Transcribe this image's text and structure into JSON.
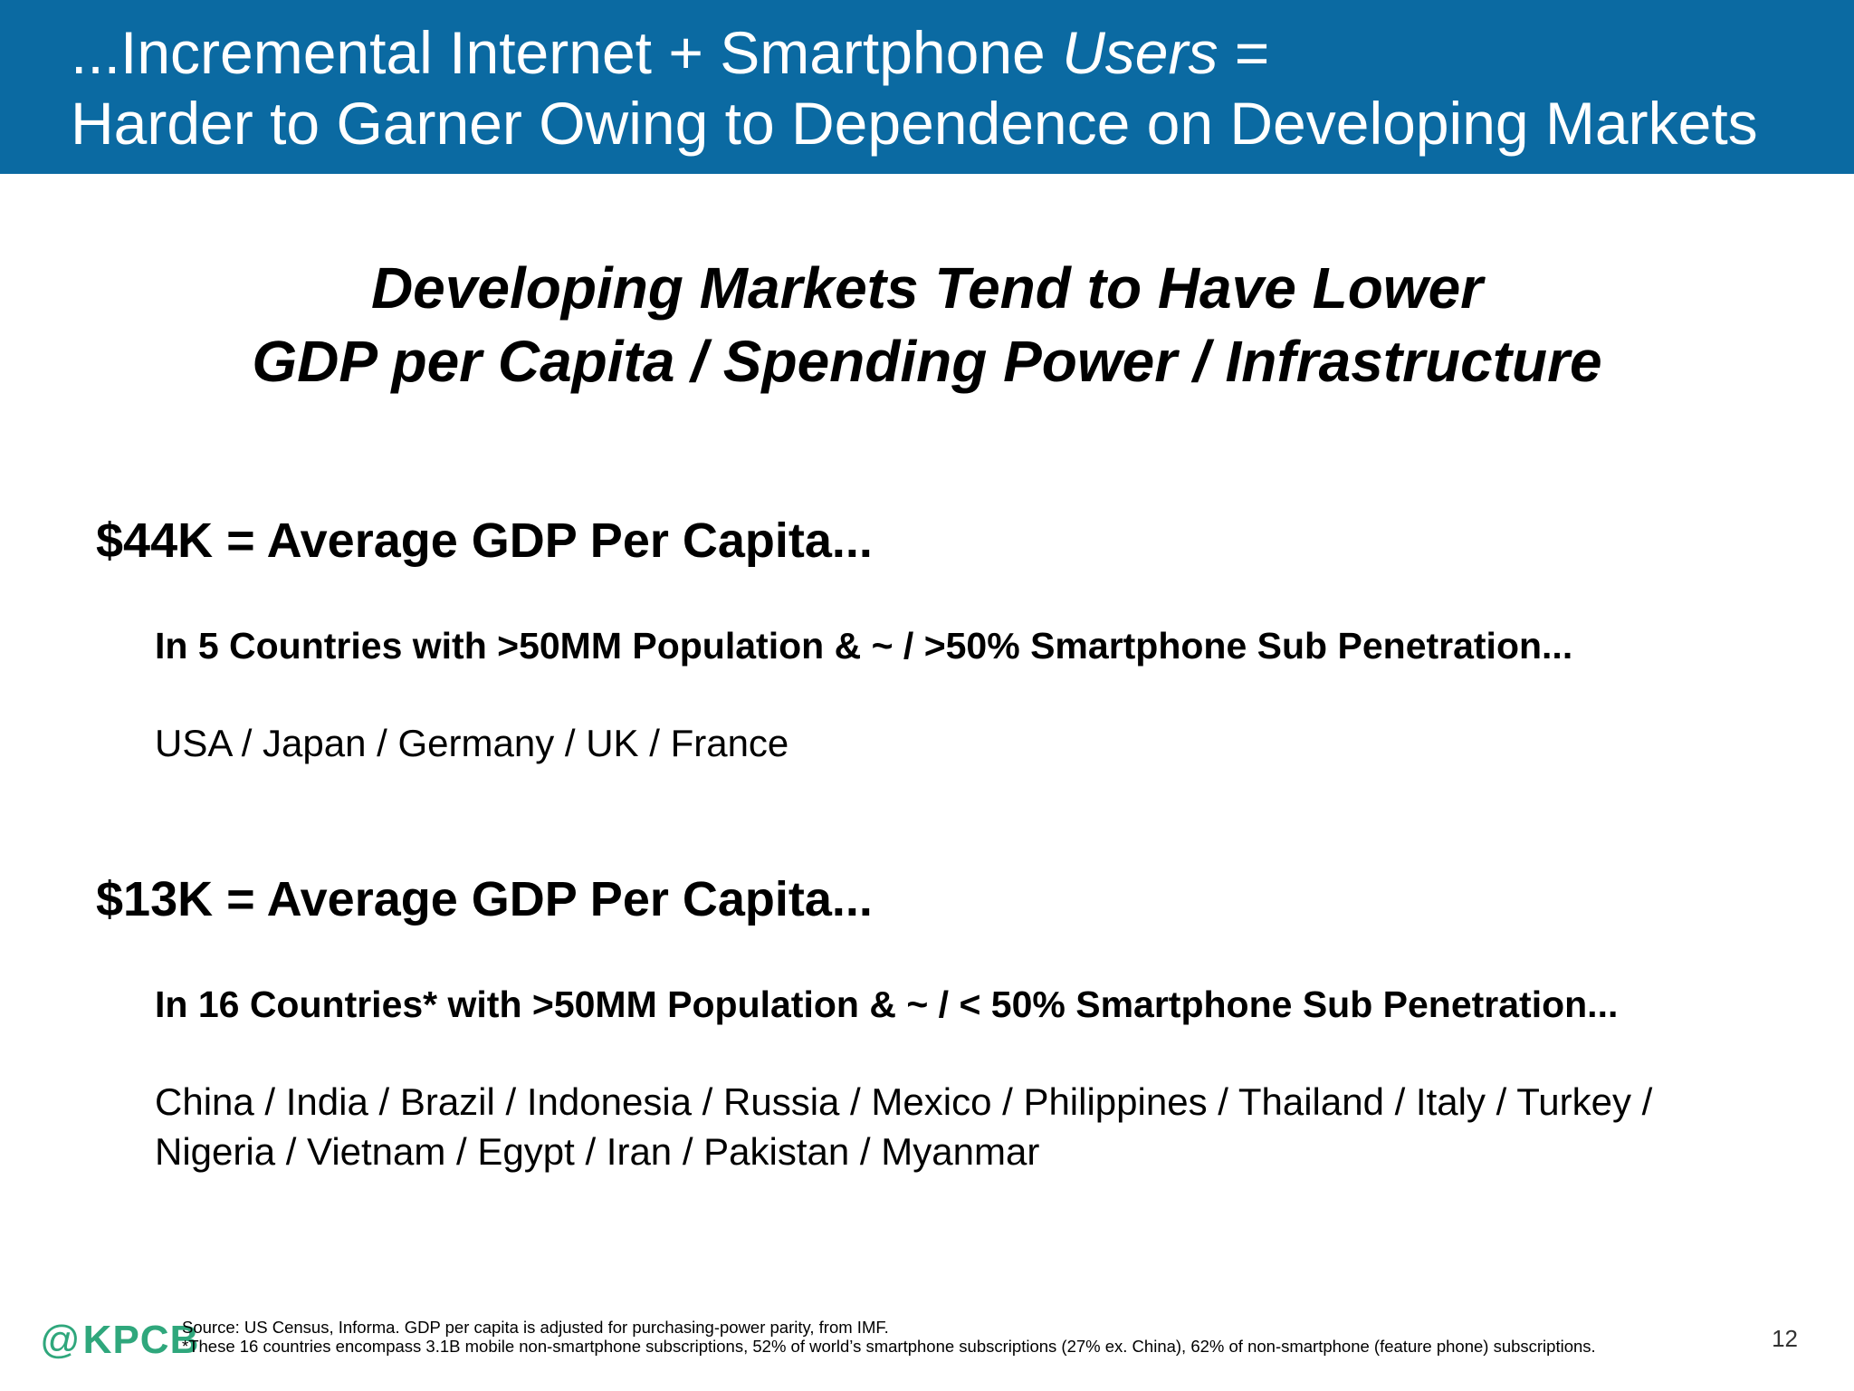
{
  "header": {
    "line1_prefix": "...Incremental Internet + Smartphone ",
    "line1_em": "Users",
    "line1_suffix": " =",
    "line2": "Harder to Garner Owing to Dependence on Developing Markets"
  },
  "subtitle": {
    "line1": "Developing Markets Tend to Have Lower",
    "line2": "GDP per Capita / Spending Power / Infrastructure"
  },
  "sections": [
    {
      "heading": "$44K = Average GDP Per Capita...",
      "subheading": "In 5 Countries with >50MM Population & ~ / >50% Smartphone Sub Penetration...",
      "countries": [
        "USA / Japan / Germany / UK / France"
      ]
    },
    {
      "heading": "$13K = Average GDP Per Capita...",
      "subheading": "In 16 Countries* with >50MM Population & ~ / < 50% Smartphone Sub Penetration...",
      "countries": [
        "China / India / Brazil / Indonesia / Russia / Mexico / Philippines / Thailand / Italy / Turkey /",
        "Nigeria / Vietnam / Egypt / Iran / Pakistan / Myanmar"
      ]
    }
  ],
  "footer": {
    "logo_at": "@",
    "logo_text": "KPCB",
    "logo_color": "#2fa77c",
    "source_note": "Source: US Census, Informa. GDP per capita is adjusted for purchasing-power parity, from IMF.",
    "footnote": "*These 16 countries encompass 3.1B mobile non-smartphone subscriptions, 52% of world’s smartphone subscriptions (27% ex. China), 62% of non-smartphone (feature phone) subscriptions.",
    "page_number": "12"
  },
  "colors": {
    "header_bg": "#0b6aa2",
    "header_text": "#ffffff"
  }
}
